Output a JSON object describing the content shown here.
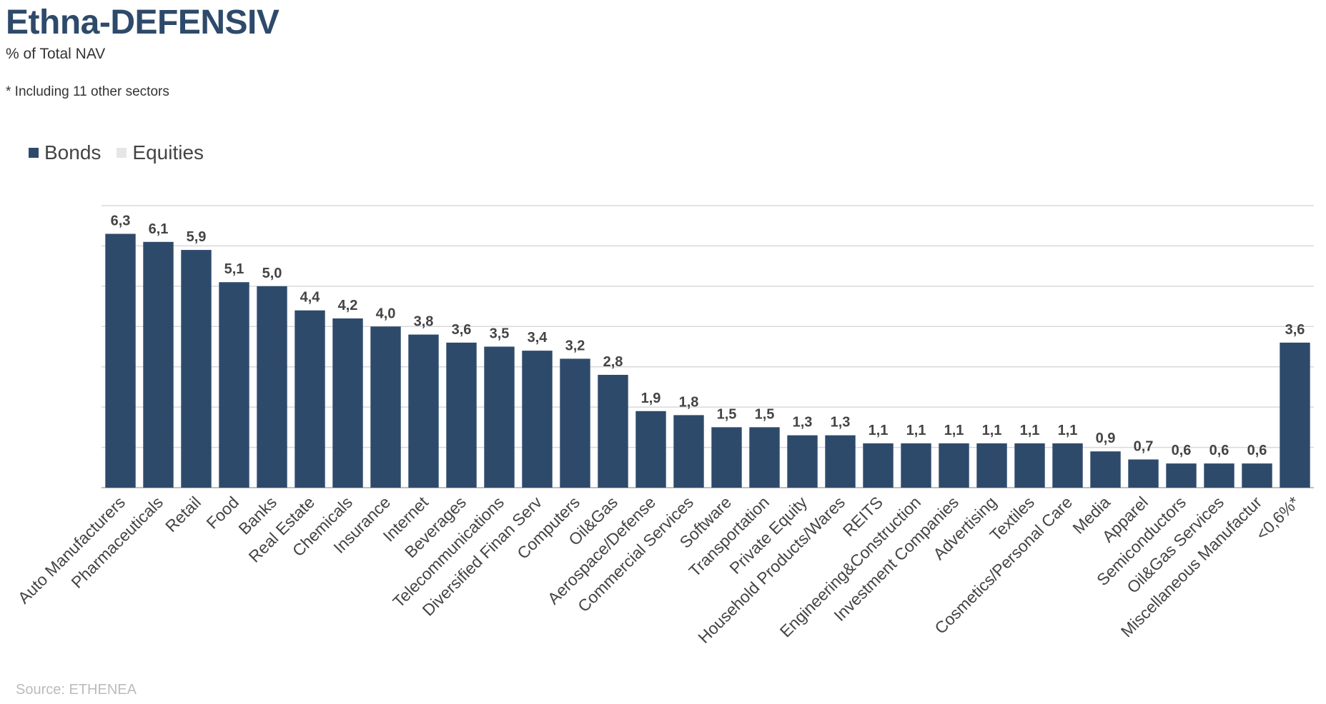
{
  "header": {
    "title": "Ethna-DEFENSIV",
    "subtitle": "% of Total NAV",
    "note": "* Including 11 other sectors"
  },
  "footer": {
    "source": "Source: ETHENEA"
  },
  "colors": {
    "bonds": "#2e4a6b",
    "equities": "#e6e6e6",
    "grid": "#d9d9d9",
    "axis": "#bfbfbf",
    "title": "#2e4a6b"
  },
  "chart_data": {
    "type": "bar",
    "title": "Ethna-DEFENSIV",
    "subtitle": "% of Total NAV",
    "xlabel": "",
    "ylabel": "",
    "ylim": [
      0,
      7
    ],
    "grid": true,
    "legend_position": "top-left",
    "categories": [
      "Auto Manufacturers",
      "Pharmaceuticals",
      "Retail",
      "Food",
      "Banks",
      "Real Estate",
      "Chemicals",
      "Insurance",
      "Internet",
      "Beverages",
      "Telecommunications",
      "Diversified Finan Serv",
      "Computers",
      "Oil&Gas",
      "Aerospace/Defense",
      "Commercial Services",
      "Software",
      "Transportation",
      "Private Equity",
      "Household Products/Wares",
      "REITS",
      "Engineering&Construction",
      "Investment Companies",
      "Advertising",
      "Textiles",
      "Cosmetics/Personal Care",
      "Media",
      "Apparel",
      "Semiconductors",
      "Oil&Gas Services",
      "Miscellaneous Manufactur",
      "<0,6%*"
    ],
    "series": [
      {
        "name": "Bonds",
        "values": [
          6.3,
          6.1,
          5.9,
          5.1,
          5.0,
          4.4,
          4.2,
          4.0,
          3.8,
          3.6,
          3.5,
          3.4,
          3.2,
          2.8,
          1.9,
          1.8,
          1.5,
          1.5,
          1.3,
          1.3,
          1.1,
          1.1,
          1.1,
          1.1,
          1.1,
          1.1,
          0.9,
          0.7,
          0.6,
          0.6,
          0.6,
          3.6
        ]
      },
      {
        "name": "Equities",
        "values": [
          0,
          0,
          0,
          0,
          0,
          0,
          0,
          0,
          0,
          0,
          0,
          0,
          0,
          0,
          0,
          0,
          0,
          0,
          0,
          0,
          0,
          0,
          0,
          0,
          0,
          0,
          0,
          0,
          0,
          0,
          0,
          0
        ]
      }
    ],
    "data_labels": [
      "6,3",
      "6,1",
      "5,9",
      "5,1",
      "5,0",
      "4,4",
      "4,2",
      "4,0",
      "3,8",
      "3,6",
      "3,5",
      "3,4",
      "3,2",
      "2,8",
      "1,9",
      "1,8",
      "1,5",
      "1,5",
      "1,3",
      "1,3",
      "1,1",
      "1,1",
      "1,1",
      "1,1",
      "1,1",
      "1,1",
      "0,9",
      "0,7",
      "0,6",
      "0,6",
      "0,6",
      "3,6"
    ]
  }
}
